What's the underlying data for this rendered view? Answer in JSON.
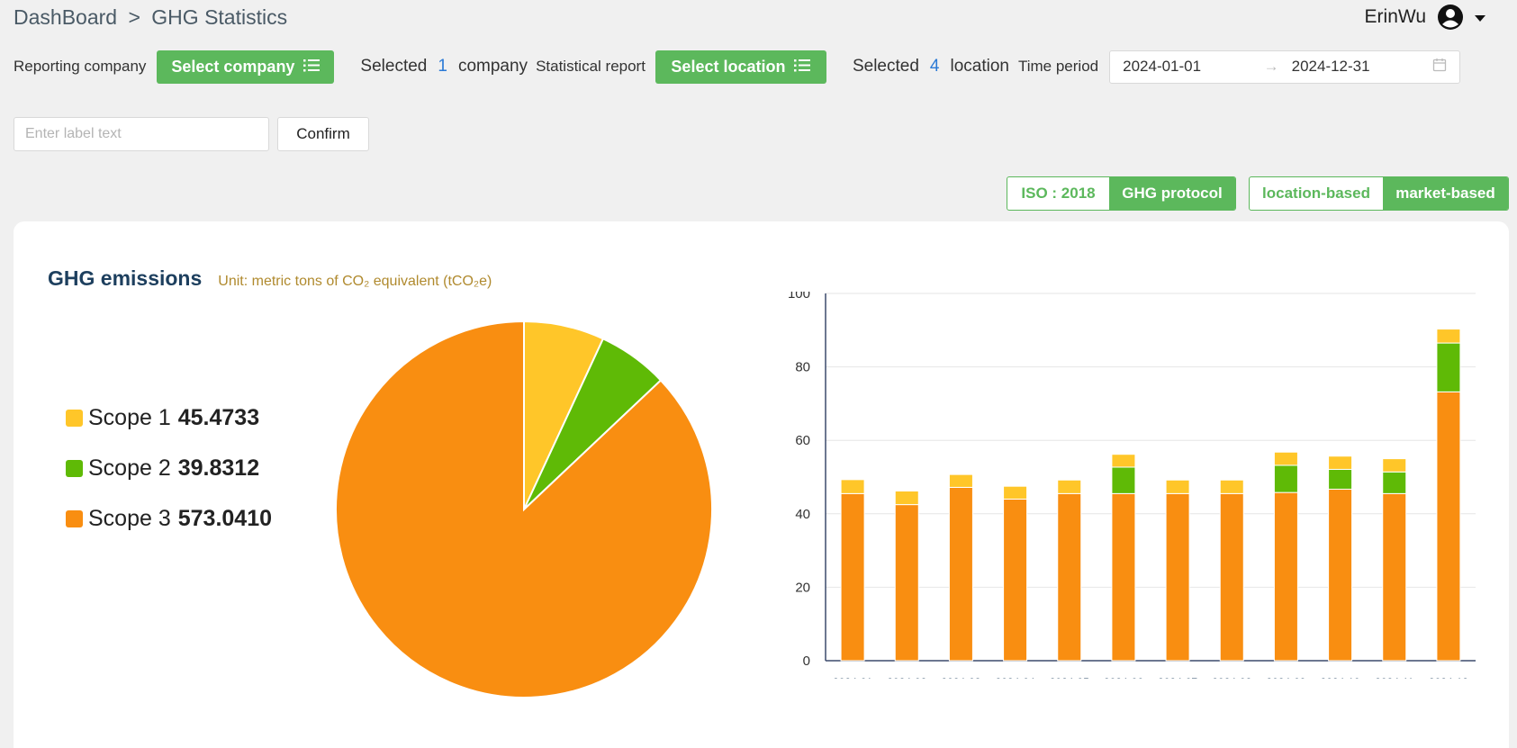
{
  "breadcrumb": {
    "root": "DashBoard",
    "sep": ">",
    "current": "GHG Statistics"
  },
  "user": {
    "name": "ErinWu",
    "icon": "account-circle-icon",
    "menu_icon": "caret-down-icon"
  },
  "filters": {
    "reporting_company_label": "Reporting company",
    "select_company_label": "Select company",
    "selected_prefix_1": "Selected",
    "company_count": "1",
    "company_suffix": "company",
    "statistical_report_label": "Statistical report",
    "select_location_label": "Select location",
    "selected_prefix_2": "Selected",
    "location_count": "4",
    "location_suffix": "location",
    "time_period_label": "Time period",
    "start_date": "2024-01-01",
    "date_separator": "→",
    "end_date": "2024-12-31"
  },
  "label_input": {
    "placeholder": "Enter label text",
    "value": ""
  },
  "confirm_label": "Confirm",
  "standard_toggle": {
    "options": [
      "ISO : 2018",
      "GHG protocol"
    ],
    "active": "GHG protocol"
  },
  "method_toggle": {
    "options": [
      "location-based",
      "market-based"
    ],
    "active": "market-based"
  },
  "card": {
    "title": "GHG emissions",
    "unit": "Unit: metric tons of CO₂ equivalent (tCO₂e)"
  },
  "legend": [
    {
      "name": "Scope 1",
      "value": "45.4733",
      "color": "#ffc629"
    },
    {
      "name": "Scope 2",
      "value": "39.8312",
      "color": "#5fba06"
    },
    {
      "name": "Scope 3",
      "value": "573.0410",
      "color": "#f98e11"
    }
  ],
  "chart_data": [
    {
      "type": "pie",
      "slices": [
        {
          "label": "Scope 1",
          "value": 45.4733,
          "color": "#ffc629"
        },
        {
          "label": "Scope 2",
          "value": 39.8312,
          "color": "#5fba06"
        },
        {
          "label": "Scope 3",
          "value": 573.041,
          "color": "#f98e11"
        }
      ]
    },
    {
      "type": "bar",
      "stacked": true,
      "categories": [
        "2024-01",
        "2024-02",
        "2024-03",
        "2024-04",
        "2024-05",
        "2024-06",
        "2024-07",
        "2024-08",
        "2024-09",
        "2024-10",
        "2024-11",
        "2024-12"
      ],
      "series": [
        {
          "name": "Scope 3",
          "color": "#f98e11",
          "values": [
            45.5,
            42.5,
            47.2,
            44,
            45.5,
            45.5,
            45.5,
            45.5,
            45.8,
            46.7,
            45.5,
            73.2
          ]
        },
        {
          "name": "Scope 2",
          "color": "#5fba06",
          "values": [
            0,
            0,
            0,
            0,
            0,
            7.2,
            0,
            0,
            7.4,
            5.4,
            5.9,
            13.3
          ]
        },
        {
          "name": "Scope 1",
          "color": "#ffc629",
          "values": [
            3.8,
            3.7,
            3.5,
            3.5,
            3.7,
            3.5,
            3.7,
            3.7,
            3.6,
            3.6,
            3.6,
            3.8
          ]
        }
      ],
      "yticks": [
        0,
        20,
        40,
        60,
        80,
        100
      ],
      "ylim": [
        0,
        100
      ],
      "grid": true
    }
  ]
}
